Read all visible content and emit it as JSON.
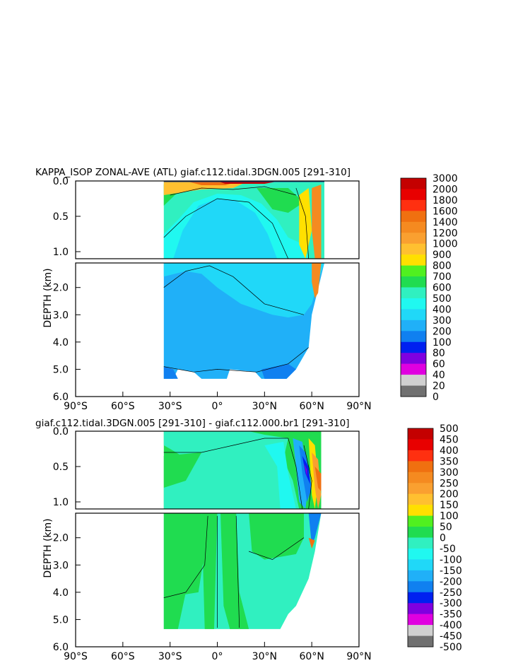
{
  "chart_data": [
    {
      "type": "heatmap",
      "title": "KAPPA_ISOP ZONAL-AVE (ATL) giaf.c112.tidal.3DGN.005 [291-310]",
      "xlabel": "",
      "ylabel": "DEPTH (km)",
      "xlim": [
        -90,
        90
      ],
      "x_ticks": [
        "90°S",
        "60°S",
        "30°S",
        "0°",
        "30°N",
        "60°N",
        "90°N"
      ],
      "upper_panel": {
        "ylim": [
          0.0,
          1.1
        ],
        "y_ticks": [
          "0.0",
          "0.5",
          "1.0"
        ]
      },
      "lower_panel": {
        "ylim": [
          1.1,
          6.0
        ],
        "y_ticks": [
          "2.0",
          "3.0",
          "4.0",
          "5.0",
          "6.0"
        ]
      },
      "colorbar": {
        "labels": [
          "3000",
          "2000",
          "1800",
          "1600",
          "1400",
          "1200",
          "1000",
          "900",
          "800",
          "700",
          "600",
          "500",
          "400",
          "300",
          "200",
          "100",
          "80",
          "60",
          "40",
          "20",
          "0"
        ],
        "colors": [
          "#c40000",
          "#e80000",
          "#ff3010",
          "#f07010",
          "#f58a20",
          "#faa030",
          "#ffc030",
          "#ffe000",
          "#50f020",
          "#20dc50",
          "#30f0c0",
          "#20f8f0",
          "#20d8f8",
          "#20b0f8",
          "#1080f0",
          "#0020f0",
          "#8000e0",
          "#e000e0",
          "#d0d0d0",
          "#707070"
        ]
      },
      "data_extent": {
        "lat_min": -34,
        "lat_max": 68,
        "max_depth_km": 5.35
      }
    },
    {
      "type": "heatmap",
      "title": "giaf.c112.tidal.3DGN.005 [291-310] - giaf.c112.000.br1 [291-310]",
      "xlabel": "",
      "ylabel": "DEPTH (km)",
      "xlim": [
        -90,
        90
      ],
      "x_ticks": [
        "90°S",
        "60°S",
        "30°S",
        "0°",
        "30°N",
        "60°N",
        "90°N"
      ],
      "upper_panel": {
        "ylim": [
          0.0,
          1.1
        ],
        "y_ticks": [
          "0.0",
          "0.5",
          "1.0"
        ]
      },
      "lower_panel": {
        "ylim": [
          1.1,
          6.0
        ],
        "y_ticks": [
          "2.0",
          "3.0",
          "4.0",
          "5.0",
          "6.0"
        ]
      },
      "colorbar": {
        "labels": [
          "500",
          "450",
          "400",
          "350",
          "300",
          "250",
          "200",
          "150",
          "100",
          "50",
          "0",
          "-50",
          "-100",
          "-150",
          "-200",
          "-250",
          "-300",
          "-350",
          "-400",
          "-450",
          "-500"
        ],
        "colors": [
          "#c40000",
          "#e80000",
          "#ff3010",
          "#f07010",
          "#f58a20",
          "#faa030",
          "#ffc030",
          "#ffe000",
          "#50f020",
          "#20dc50",
          "#30f0c0",
          "#20f8f0",
          "#20d8f8",
          "#20b0f8",
          "#1080f0",
          "#0020f0",
          "#8000e0",
          "#e000e0",
          "#d0d0d0",
          "#707070"
        ]
      },
      "data_extent": {
        "lat_min": -34,
        "lat_max": 66,
        "max_depth_km": 5.35
      }
    }
  ]
}
